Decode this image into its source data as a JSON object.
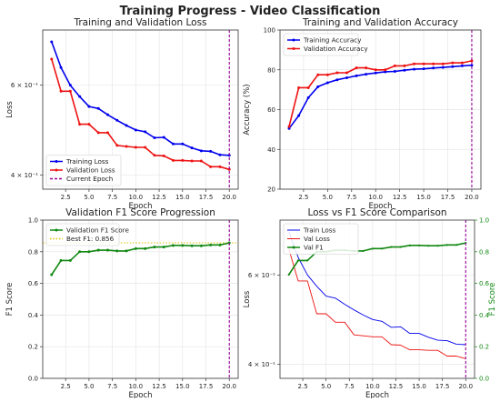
{
  "suptitle": "Training Progress - Video Classification",
  "panels": {
    "loss": {
      "title": "Training and Validation Loss",
      "xlabel": "Epoch",
      "ylabel": "Loss",
      "legend": {
        "training": "Training Loss",
        "validation": "Validation Loss",
        "current": "Current Epoch"
      }
    },
    "accuracy": {
      "title": "Training and Validation Accuracy",
      "xlabel": "Epoch",
      "ylabel": "Accuracy (%)",
      "legend": {
        "training": "Training Accuracy",
        "validation": "Validation Accuracy"
      }
    },
    "f1": {
      "title": "Validation F1 Score Progression",
      "xlabel": "Epoch",
      "ylabel": "F1 Score",
      "legend": {
        "validation": "Validation F1 Score",
        "best": "Best F1: 0.856"
      }
    },
    "combined": {
      "title": "Loss vs F1 Score Comparison",
      "xlabel": "Epoch",
      "ylabel": "Loss",
      "ylabel_right": "F1 Score",
      "legend": {
        "train": "Train Loss",
        "val": "Val Loss",
        "f1": "Val F1"
      }
    }
  },
  "colors": {
    "training": "#0000ee",
    "validation": "#ee1111",
    "f1": "#118811",
    "current_epoch": "#990099",
    "best_line": "#e0c000"
  },
  "chart_data": [
    {
      "type": "line",
      "title": "Training and Validation Loss",
      "xlabel": "Epoch",
      "ylabel": "Loss",
      "yscale": "log",
      "xlim": [
        0.05,
        20.95
      ],
      "ylim": [
        0.375,
        0.77
      ],
      "xticks": [
        2.5,
        5.0,
        7.5,
        10.0,
        12.5,
        15.0,
        17.5,
        20.0
      ],
      "yticks": [
        {
          "value": 0.4,
          "label": "4 × 10⁻¹"
        },
        {
          "value": 0.6,
          "label": "6 × 10⁻¹"
        }
      ],
      "x": [
        1,
        2,
        3,
        4,
        5,
        6,
        7,
        8,
        9,
        10,
        11,
        12,
        13,
        14,
        15,
        16,
        17,
        18,
        19,
        20
      ],
      "series": [
        {
          "name": "Training Loss",
          "values": [
            0.73,
            0.65,
            0.6,
            0.57,
            0.545,
            0.54,
            0.525,
            0.512,
            0.5,
            0.49,
            0.486,
            0.473,
            0.474,
            0.46,
            0.46,
            0.452,
            0.446,
            0.445,
            0.438,
            0.437
          ]
        },
        {
          "name": "Validation Loss",
          "values": [
            0.675,
            0.584,
            0.584,
            0.503,
            0.503,
            0.484,
            0.484,
            0.457,
            0.455,
            0.453,
            0.453,
            0.437,
            0.436,
            0.427,
            0.427,
            0.426,
            0.426,
            0.415,
            0.415,
            0.41
          ]
        }
      ],
      "vline": {
        "name": "Current Epoch",
        "x": 20
      },
      "grid": true,
      "legend_position": "lower-left"
    },
    {
      "type": "line",
      "title": "Training and Validation Accuracy",
      "xlabel": "Epoch",
      "ylabel": "Accuracy (%)",
      "xlim": [
        0.05,
        20.95
      ],
      "ylim": [
        20,
        100
      ],
      "xticks": [
        2.5,
        5.0,
        7.5,
        10.0,
        12.5,
        15.0,
        17.5,
        20.0
      ],
      "yticks": [
        20,
        40,
        60,
        80,
        100
      ],
      "x": [
        1,
        2,
        3,
        4,
        5,
        6,
        7,
        8,
        9,
        10,
        11,
        12,
        13,
        14,
        15,
        16,
        17,
        18,
        19,
        20
      ],
      "series": [
        {
          "name": "Training Accuracy",
          "values": [
            50.5,
            57.0,
            66.0,
            71.5,
            73.5,
            75.0,
            76.0,
            77.0,
            77.8,
            78.4,
            79.0,
            79.2,
            79.8,
            80.3,
            80.5,
            80.9,
            81.2,
            81.6,
            82.0,
            82.3
          ]
        },
        {
          "name": "Validation Accuracy",
          "values": [
            51.5,
            71.0,
            71.0,
            77.5,
            77.5,
            78.5,
            78.5,
            81.0,
            81.0,
            80.0,
            80.0,
            82.0,
            82.0,
            83.0,
            83.0,
            83.0,
            83.0,
            83.5,
            83.5,
            84.5
          ]
        }
      ],
      "vline": {
        "x": 20
      },
      "grid": true,
      "legend_position": "top-left"
    },
    {
      "type": "line",
      "title": "Validation F1 Score Progression",
      "xlabel": "Epoch",
      "ylabel": "F1 Score",
      "xlim": [
        0.05,
        20.95
      ],
      "ylim": [
        0,
        1.0
      ],
      "xticks": [
        2.5,
        5.0,
        7.5,
        10.0,
        12.5,
        15.0,
        17.5,
        20.0
      ],
      "yticks": [
        0.0,
        0.2,
        0.4,
        0.6,
        0.8,
        1.0
      ],
      "x": [
        1,
        2,
        3,
        4,
        5,
        6,
        7,
        8,
        9,
        10,
        11,
        12,
        13,
        14,
        15,
        16,
        17,
        18,
        19,
        20
      ],
      "series": [
        {
          "name": "Validation F1 Score",
          "values": [
            0.655,
            0.745,
            0.745,
            0.8,
            0.8,
            0.81,
            0.81,
            0.805,
            0.805,
            0.82,
            0.82,
            0.83,
            0.83,
            0.84,
            0.84,
            0.838,
            0.838,
            0.843,
            0.843,
            0.856
          ]
        }
      ],
      "hline": {
        "name": "Best F1: 0.856",
        "y": 0.856
      },
      "vline": {
        "x": 20
      },
      "grid": true,
      "legend_position": "top-left"
    },
    {
      "type": "line",
      "title": "Loss vs F1 Score Comparison",
      "xlabel": "Epoch",
      "ylabel": "Loss",
      "ylabel_right": "F1 Score",
      "yscale": "log",
      "xlim": [
        0.05,
        20.95
      ],
      "ylim": [
        0.375,
        0.77
      ],
      "ylim_right": [
        0,
        1.0
      ],
      "xticks": [
        2.5,
        5.0,
        7.5,
        10.0,
        12.5,
        15.0,
        17.5,
        20.0
      ],
      "yticks": [
        {
          "value": 0.4,
          "label": "4 × 10⁻¹"
        },
        {
          "value": 0.6,
          "label": "6 × 10⁻¹"
        }
      ],
      "yticks_right": [
        0.0,
        0.2,
        0.4,
        0.6,
        0.8,
        1.0
      ],
      "x": [
        1,
        2,
        3,
        4,
        5,
        6,
        7,
        8,
        9,
        10,
        11,
        12,
        13,
        14,
        15,
        16,
        17,
        18,
        19,
        20
      ],
      "series": [
        {
          "name": "Train Loss",
          "axis": "left",
          "values": [
            0.73,
            0.65,
            0.6,
            0.57,
            0.545,
            0.54,
            0.525,
            0.512,
            0.5,
            0.49,
            0.486,
            0.473,
            0.474,
            0.46,
            0.46,
            0.452,
            0.446,
            0.445,
            0.438,
            0.437
          ]
        },
        {
          "name": "Val Loss",
          "axis": "left",
          "values": [
            0.675,
            0.584,
            0.584,
            0.503,
            0.503,
            0.484,
            0.484,
            0.457,
            0.455,
            0.453,
            0.453,
            0.437,
            0.436,
            0.427,
            0.427,
            0.426,
            0.426,
            0.415,
            0.415,
            0.41
          ]
        },
        {
          "name": "Val F1",
          "axis": "right",
          "values": [
            0.655,
            0.745,
            0.745,
            0.8,
            0.8,
            0.81,
            0.81,
            0.805,
            0.805,
            0.82,
            0.82,
            0.83,
            0.83,
            0.84,
            0.84,
            0.838,
            0.838,
            0.843,
            0.843,
            0.856
          ]
        }
      ],
      "vline": {
        "x": 20
      },
      "grid": true,
      "legend_position": "top-left"
    }
  ]
}
